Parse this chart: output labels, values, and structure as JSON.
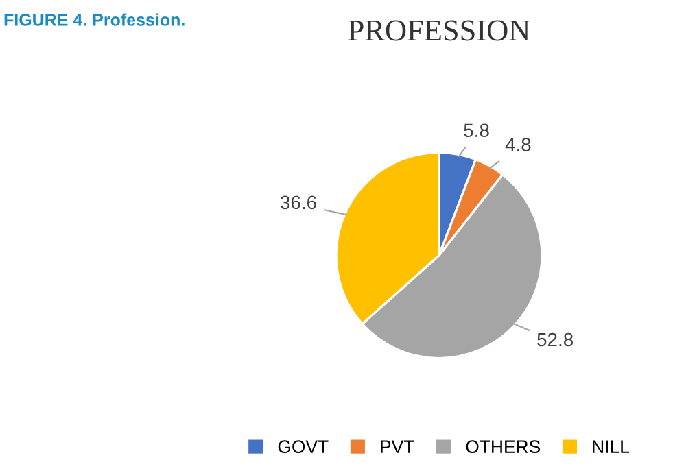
{
  "chart_data": {
    "type": "pie",
    "title": "PROFESSION",
    "annotations": [
      "FIGURE 4. Profession."
    ],
    "categories": [
      "GOVT",
      "PVT",
      "OTHERS",
      "NILL"
    ],
    "values": [
      5.8,
      4.8,
      52.8,
      36.6
    ],
    "colors": [
      "#4472c4",
      "#ed7d31",
      "#a5a5a5",
      "#ffc000"
    ],
    "data_labels": true,
    "legend": "bottom"
  }
}
